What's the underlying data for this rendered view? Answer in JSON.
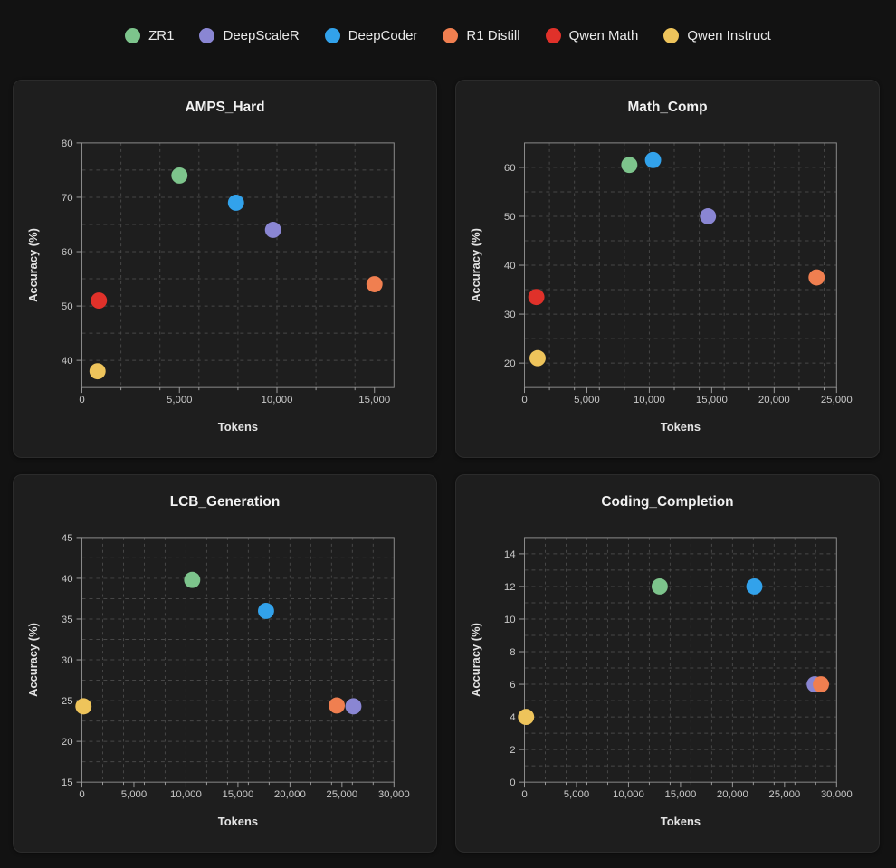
{
  "page": {
    "background": "#121212",
    "card_background": "#1e1e1e",
    "grid_color": "#474747",
    "spine_color": "#8b8b8b",
    "tick_color": "#9a9a9a"
  },
  "legend": {
    "position": "top",
    "items": [
      {
        "label": "ZR1",
        "color": "#7DC48C"
      },
      {
        "label": "DeepScaleR",
        "color": "#8A86D3"
      },
      {
        "label": "DeepCoder",
        "color": "#32A2EB"
      },
      {
        "label": "R1 Distill",
        "color": "#F07F50"
      },
      {
        "label": "Qwen Math",
        "color": "#E0312A"
      },
      {
        "label": "Qwen Instruct",
        "color": "#EEC45B"
      }
    ]
  },
  "chart_data": [
    {
      "type": "scatter",
      "title": "AMPS_Hard",
      "xlabel": "Tokens",
      "ylabel": "Accuracy (%)",
      "xlim": [
        0,
        16000
      ],
      "ylim": [
        35,
        80
      ],
      "x_ticks": [
        0,
        5000,
        10000,
        15000
      ],
      "y_ticks": [
        40,
        50,
        60,
        70,
        80
      ],
      "x_grid_step": 2000,
      "y_grid_step": 5,
      "grid": "dashed",
      "points": [
        {
          "series": "ZR1",
          "x": 5000,
          "y": 74
        },
        {
          "series": "DeepCoder",
          "x": 7900,
          "y": 69
        },
        {
          "series": "DeepScaleR",
          "x": 9800,
          "y": 64
        },
        {
          "series": "R1 Distill",
          "x": 15000,
          "y": 54
        },
        {
          "series": "Qwen Math",
          "x": 870,
          "y": 51
        },
        {
          "series": "Qwen Instruct",
          "x": 800,
          "y": 38
        }
      ]
    },
    {
      "type": "scatter",
      "title": "Math_Comp",
      "xlabel": "Tokens",
      "ylabel": "Accuracy (%)",
      "xlim": [
        0,
        25000
      ],
      "ylim": [
        15,
        65
      ],
      "x_ticks": [
        0,
        5000,
        10000,
        15000,
        20000,
        25000
      ],
      "y_ticks": [
        20,
        30,
        40,
        50,
        60
      ],
      "x_grid_step": 2000,
      "y_grid_step": 5,
      "grid": "dashed",
      "points": [
        {
          "series": "ZR1",
          "x": 8400,
          "y": 60.5
        },
        {
          "series": "DeepCoder",
          "x": 10300,
          "y": 61.5
        },
        {
          "series": "DeepScaleR",
          "x": 14700,
          "y": 50
        },
        {
          "series": "R1 Distill",
          "x": 23400,
          "y": 37.5
        },
        {
          "series": "Qwen Math",
          "x": 950,
          "y": 33.5
        },
        {
          "series": "Qwen Instruct",
          "x": 1050,
          "y": 21
        }
      ]
    },
    {
      "type": "scatter",
      "title": "LCB_Generation",
      "xlabel": "Tokens",
      "ylabel": "Accuracy (%)",
      "xlim": [
        0,
        30000
      ],
      "ylim": [
        15,
        45
      ],
      "x_ticks": [
        0,
        5000,
        10000,
        15000,
        20000,
        25000,
        30000
      ],
      "y_ticks": [
        15,
        20,
        25,
        30,
        35,
        40,
        45
      ],
      "x_grid_step": 2000,
      "y_grid_step": 2.5,
      "grid": "dashed",
      "points": [
        {
          "series": "ZR1",
          "x": 10600,
          "y": 39.8
        },
        {
          "series": "DeepCoder",
          "x": 17700,
          "y": 36
        },
        {
          "series": "R1 Distill",
          "x": 24500,
          "y": 24.4
        },
        {
          "series": "DeepScaleR",
          "x": 26100,
          "y": 24.3
        },
        {
          "series": "Qwen Instruct",
          "x": 150,
          "y": 24.3
        }
      ]
    },
    {
      "type": "scatter",
      "title": "Coding_Completion",
      "xlabel": "Tokens",
      "ylabel": "Accuracy (%)",
      "xlim": [
        0,
        30000
      ],
      "ylim": [
        0,
        15
      ],
      "x_ticks": [
        0,
        5000,
        10000,
        15000,
        20000,
        25000,
        30000
      ],
      "y_ticks": [
        0,
        2,
        4,
        6,
        8,
        10,
        12,
        14
      ],
      "x_grid_step": 2000,
      "y_grid_step": 1,
      "grid": "dashed",
      "points": [
        {
          "series": "ZR1",
          "x": 13000,
          "y": 12
        },
        {
          "series": "DeepCoder",
          "x": 22100,
          "y": 12
        },
        {
          "series": "DeepScaleR",
          "x": 27900,
          "y": 6
        },
        {
          "series": "R1 Distill",
          "x": 28500,
          "y": 6
        },
        {
          "series": "Qwen Instruct",
          "x": 150,
          "y": 4
        }
      ]
    }
  ]
}
